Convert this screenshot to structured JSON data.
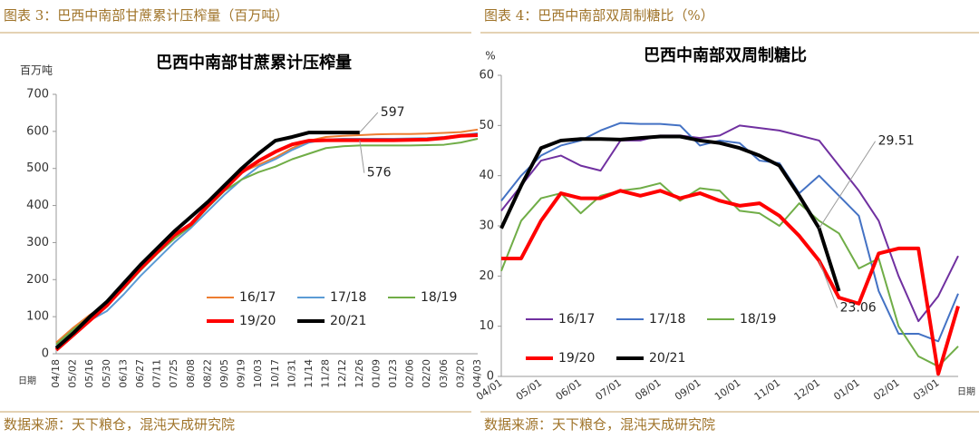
{
  "chart_data": [
    {
      "type": "line",
      "caption": "图表 3：巴西中南部甘蔗累计压榨量（百万吨）",
      "title": "巴西中南部甘蔗累计压榨量",
      "y_label": "百万吨",
      "x_label": "日期",
      "source": "数据来源：天下粮仓，混沌天成研究院",
      "categories": [
        "04/18",
        "05/02",
        "05/16",
        "05/30",
        "06/13",
        "06/27",
        "07/11",
        "07/25",
        "08/08",
        "08/22",
        "09/05",
        "09/19",
        "10/03",
        "10/17",
        "10/31",
        "11/14",
        "11/28",
        "12/12",
        "12/26",
        "01/09",
        "01/23",
        "02/06",
        "02/20",
        "03/06",
        "03/20",
        "04/03"
      ],
      "ylim": [
        0,
        700
      ],
      "yticks": [
        0,
        100,
        200,
        300,
        400,
        500,
        600,
        700
      ],
      "series": [
        {
          "name": "16/17",
          "color": "#ed7d31",
          "values": [
            30,
            70,
            105,
            135,
            180,
            225,
            275,
            315,
            350,
            400,
            445,
            490,
            510,
            530,
            555,
            575,
            585,
            588,
            590,
            592,
            593,
            593,
            594,
            596,
            598,
            605
          ]
        },
        {
          "name": "17/18",
          "color": "#5b9bd5",
          "values": [
            20,
            60,
            90,
            115,
            160,
            210,
            255,
            300,
            340,
            385,
            430,
            470,
            505,
            525,
            550,
            570,
            578,
            580,
            580,
            580,
            580,
            581,
            582,
            585,
            590,
            595
          ]
        },
        {
          "name": "18/19",
          "color": "#70ad47",
          "values": [
            25,
            65,
            100,
            130,
            175,
            225,
            270,
            310,
            345,
            395,
            440,
            470,
            490,
            505,
            525,
            540,
            555,
            560,
            562,
            562,
            562,
            562,
            563,
            564,
            570,
            580
          ]
        },
        {
          "name": "19/20",
          "color": "#ff0000",
          "values": [
            10,
            50,
            90,
            130,
            180,
            230,
            275,
            320,
            350,
            400,
            445,
            490,
            520,
            545,
            565,
            575,
            576,
            576,
            576,
            576,
            576,
            577,
            578,
            582,
            588,
            590
          ]
        },
        {
          "name": "20/21",
          "color": "#000000",
          "values": [
            15,
            55,
            100,
            140,
            190,
            240,
            285,
            330,
            370,
            410,
            455,
            500,
            540,
            575,
            585,
            597,
            597,
            597,
            597,
            null,
            null,
            null,
            null,
            null,
            null,
            null
          ]
        }
      ],
      "annotations": [
        {
          "text": "597",
          "value": 597
        },
        {
          "text": "576",
          "value": 576
        }
      ]
    },
    {
      "type": "line",
      "caption": "图表 4：巴西中南部双周制糖比（%）",
      "title": "巴西中南部双周制糖比",
      "y_label": "%",
      "x_label": "日期",
      "source": "数据来源：天下粮仓，混沌天成研究院",
      "categories": [
        "04/01",
        null,
        "05/01",
        null,
        "06/01",
        null,
        "07/01",
        null,
        "08/01",
        null,
        "09/01",
        null,
        "10/01",
        null,
        "11/01",
        null,
        "12/01",
        null,
        "01/01",
        null,
        "02/01",
        null,
        "03/01",
        null
      ],
      "ylim": [
        0,
        60
      ],
      "yticks": [
        0,
        10,
        20,
        30,
        40,
        50,
        60
      ],
      "series": [
        {
          "name": "16/17",
          "color": "#7030a0",
          "values": [
            33,
            38,
            43,
            44,
            42,
            41,
            47,
            47,
            48,
            48,
            47.5,
            48,
            50,
            49.5,
            49,
            48,
            47,
            42,
            37,
            31,
            20,
            11,
            16,
            24
          ]
        },
        {
          "name": "17/18",
          "color": "#4472c4",
          "values": [
            35,
            40,
            44,
            46,
            47,
            49,
            50.5,
            50.3,
            50.3,
            50,
            46,
            47,
            46.5,
            43,
            42.5,
            36.5,
            40,
            36,
            32,
            17,
            8.5,
            8.5,
            7,
            16.5
          ]
        },
        {
          "name": "18/19",
          "color": "#70ad47",
          "values": [
            21,
            31,
            35.5,
            36.5,
            32.5,
            36,
            37,
            37.5,
            38.5,
            35,
            37.5,
            37,
            33,
            32.5,
            30,
            34.5,
            31,
            28.5,
            21.5,
            23.5,
            10,
            4,
            2,
            6
          ]
        },
        {
          "name": "19/20",
          "color": "#ff0000",
          "values": [
            23.5,
            23.5,
            31,
            36.5,
            35.5,
            35.5,
            37,
            36,
            37,
            35.5,
            36.5,
            35,
            34,
            34.5,
            32,
            28,
            23.06,
            15.7,
            14.5,
            24.5,
            25.5,
            25.5,
            0.5,
            14
          ]
        },
        {
          "name": "20/21",
          "color": "#000000",
          "values": [
            29.5,
            38,
            45.5,
            47,
            47.3,
            47.3,
            47.2,
            47.5,
            47.8,
            47.8,
            47,
            46.5,
            45.5,
            44,
            42,
            36,
            29.51,
            17,
            null,
            null,
            null,
            null,
            null,
            null
          ]
        }
      ],
      "annotations": [
        {
          "text": "29.51",
          "value": 29.51
        },
        {
          "text": "23.06",
          "value": 23.06
        }
      ]
    }
  ]
}
